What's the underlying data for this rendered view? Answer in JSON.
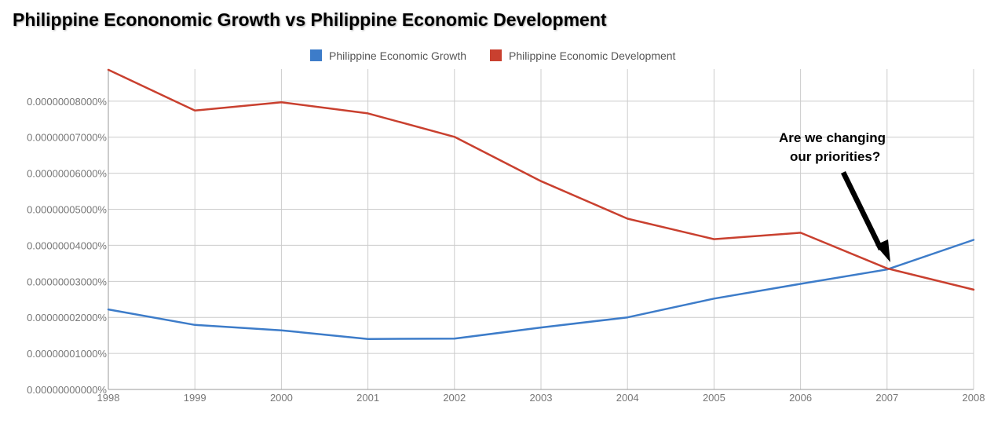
{
  "title": "Philippine Econonomic Growth vs Philippine Economic Development",
  "colors": {
    "growth": "#3d7cc9",
    "development": "#c9402f",
    "grid": "#cccccc",
    "axis": "#999999"
  },
  "annotation": {
    "lines": [
      "Are we changing",
      "our priorities?"
    ]
  },
  "chart_data": {
    "type": "line",
    "x": [
      "1998",
      "1999",
      "2000",
      "2001",
      "2002",
      "2003",
      "2004",
      "2005",
      "2006",
      "2007",
      "2008"
    ],
    "y_ticks": [
      "0.00000000000%",
      "0.00000001000%",
      "0.00000002000%",
      "0.00000003000%",
      "0.00000004000%",
      "0.00000005000%",
      "0.00000006000%",
      "0.00000007000%",
      "0.00000008000%"
    ],
    "ylim": [
      0,
      8.89e-08
    ],
    "y_unit": "%",
    "grid": true,
    "legend_position": "top",
    "series": [
      {
        "name": "Philippine Economic Growth",
        "color": "#3d7cc9",
        "values": [
          2.22e-08,
          1.79e-08,
          1.64e-08,
          1.4e-08,
          1.41e-08,
          1.72e-08,
          2e-08,
          2.52e-08,
          2.93e-08,
          3.33e-08,
          4.15e-08
        ]
      },
      {
        "name": "Philippine Economic Development",
        "color": "#c9402f",
        "values": [
          8.87e-08,
          7.74e-08,
          7.97e-08,
          7.66e-08,
          7.01e-08,
          5.78e-08,
          4.74e-08,
          4.17e-08,
          4.35e-08,
          3.36e-08,
          2.77e-08
        ]
      }
    ]
  }
}
